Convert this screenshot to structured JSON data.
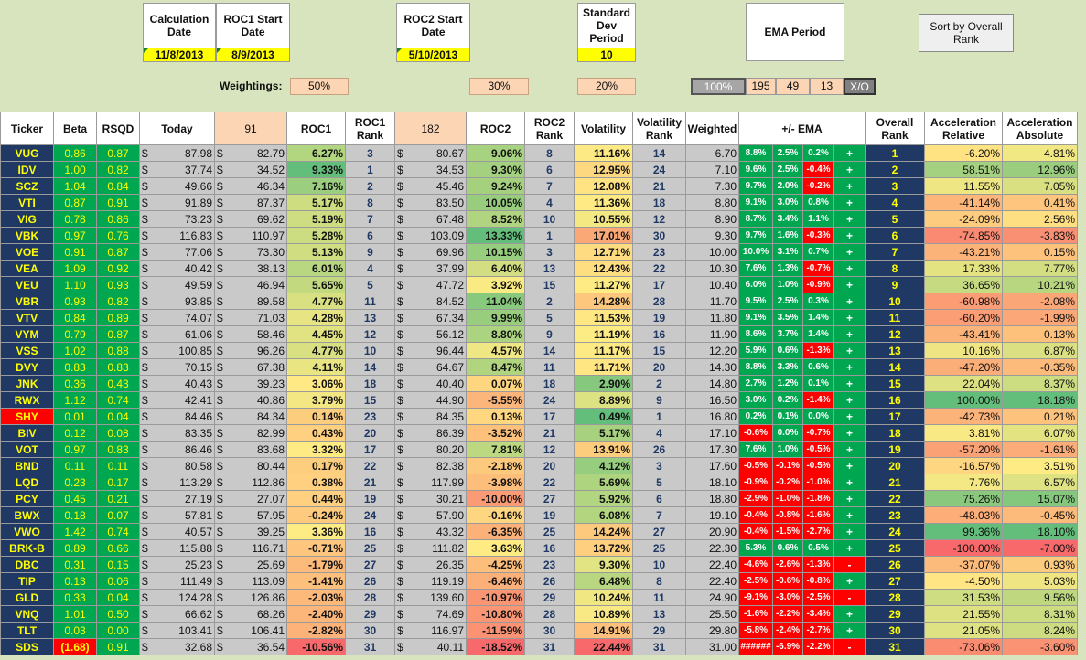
{
  "header": {
    "calc_date_label": "Calculation Date",
    "calc_date": "11/8/2013",
    "roc1_start_label": "ROC1 Start Date",
    "roc1_start": "8/9/2013",
    "roc2_start_label": "ROC2 Start Date",
    "roc2_start": "5/10/2013",
    "std_dev_label": "Standard Dev Period",
    "std_dev": "10",
    "ema_label": "EMA Period",
    "sort_button": "Sort by Overall Rank",
    "weightings_label": "Weightings:",
    "w_roc1": "50%",
    "w_roc2": "30%",
    "w_vol": "20%",
    "ema_pct": "100%",
    "ema_p1": "195",
    "ema_p2": "49",
    "ema_p3": "13",
    "xo": "X/O"
  },
  "columns": {
    "ticker": "Ticker",
    "beta": "Beta",
    "rsqd": "RSQD",
    "today": "Today",
    "p91": "91",
    "roc1": "ROC1",
    "roc1rank": "ROC1 Rank",
    "p182": "182",
    "roc2": "ROC2",
    "roc2rank": "ROC2 Rank",
    "vol": "Volatility",
    "volrank": "Volatility Rank",
    "weighted": "Weighted",
    "ema": "+/- EMA",
    "overall": "Overall Rank",
    "accrel": "Acceleration Relative",
    "accabs": "Acceleration Absolute"
  },
  "colors": {
    "navy": "#1f3864",
    "green": "#00a650",
    "red": "#ff0000",
    "yellow": "#ffff00",
    "peach": "#fcd5b4",
    "gray": "#c9c9c9",
    "bg": "#d7e4bd"
  },
  "rows": [
    [
      "VUG",
      "0.86",
      "0.87",
      "87.98",
      "82.79",
      "6.27%",
      "3",
      "80.67",
      "9.06%",
      "8",
      "11.16%",
      "14",
      "6.70",
      "8.8%",
      "2.5%",
      "0.2%",
      "+",
      "1",
      "-6.20%",
      "4.81%"
    ],
    [
      "IDV",
      "1.00",
      "0.82",
      "37.74",
      "34.52",
      "9.33%",
      "1",
      "34.53",
      "9.30%",
      "6",
      "12.95%",
      "24",
      "7.10",
      "9.6%",
      "2.5%",
      "-0.4%",
      "+",
      "2",
      "58.51%",
      "12.96%"
    ],
    [
      "SCZ",
      "1.04",
      "0.84",
      "49.66",
      "46.34",
      "7.16%",
      "2",
      "45.46",
      "9.24%",
      "7",
      "12.08%",
      "21",
      "7.30",
      "9.7%",
      "2.0%",
      "-0.2%",
      "+",
      "3",
      "11.55%",
      "7.05%"
    ],
    [
      "VTI",
      "0.87",
      "0.91",
      "91.89",
      "87.37",
      "5.17%",
      "8",
      "83.50",
      "10.05%",
      "4",
      "11.36%",
      "18",
      "8.80",
      "9.1%",
      "3.0%",
      "0.8%",
      "+",
      "4",
      "-41.14%",
      "0.41%"
    ],
    [
      "VIG",
      "0.78",
      "0.86",
      "73.23",
      "69.62",
      "5.19%",
      "7",
      "67.48",
      "8.52%",
      "10",
      "10.55%",
      "12",
      "8.90",
      "8.7%",
      "3.4%",
      "1.1%",
      "+",
      "5",
      "-24.09%",
      "2.56%"
    ],
    [
      "VBK",
      "0.97",
      "0.76",
      "116.83",
      "110.97",
      "5.28%",
      "6",
      "103.09",
      "13.33%",
      "1",
      "17.01%",
      "30",
      "9.30",
      "9.7%",
      "1.6%",
      "-0.3%",
      "+",
      "6",
      "-74.85%",
      "-3.83%"
    ],
    [
      "VOE",
      "0.91",
      "0.87",
      "77.06",
      "73.30",
      "5.13%",
      "9",
      "69.96",
      "10.15%",
      "3",
      "12.71%",
      "23",
      "10.00",
      "10.0%",
      "3.1%",
      "0.7%",
      "+",
      "7",
      "-43.21%",
      "0.15%"
    ],
    [
      "VEA",
      "1.09",
      "0.92",
      "40.42",
      "38.13",
      "6.01%",
      "4",
      "37.99",
      "6.40%",
      "13",
      "12.43%",
      "22",
      "10.30",
      "7.6%",
      "1.3%",
      "-0.7%",
      "+",
      "8",
      "17.33%",
      "7.77%"
    ],
    [
      "VEU",
      "1.10",
      "0.93",
      "49.59",
      "46.94",
      "5.65%",
      "5",
      "47.72",
      "3.92%",
      "15",
      "11.27%",
      "17",
      "10.40",
      "6.0%",
      "1.0%",
      "-0.9%",
      "+",
      "9",
      "36.65%",
      "10.21%"
    ],
    [
      "VBR",
      "0.93",
      "0.82",
      "93.85",
      "89.58",
      "4.77%",
      "11",
      "84.52",
      "11.04%",
      "2",
      "14.28%",
      "28",
      "11.70",
      "9.5%",
      "2.5%",
      "0.3%",
      "+",
      "10",
      "-60.98%",
      "-2.08%"
    ],
    [
      "VTV",
      "0.84",
      "0.89",
      "74.07",
      "71.03",
      "4.28%",
      "13",
      "67.34",
      "9.99%",
      "5",
      "11.53%",
      "19",
      "11.80",
      "9.1%",
      "3.5%",
      "1.4%",
      "+",
      "11",
      "-60.20%",
      "-1.99%"
    ],
    [
      "VYM",
      "0.79",
      "0.87",
      "61.06",
      "58.46",
      "4.45%",
      "12",
      "56.12",
      "8.80%",
      "9",
      "11.19%",
      "16",
      "11.90",
      "8.6%",
      "3.7%",
      "1.4%",
      "+",
      "12",
      "-43.41%",
      "0.13%"
    ],
    [
      "VSS",
      "1.02",
      "0.88",
      "100.85",
      "96.26",
      "4.77%",
      "10",
      "96.44",
      "4.57%",
      "14",
      "11.17%",
      "15",
      "12.20",
      "5.9%",
      "0.6%",
      "-1.3%",
      "+",
      "13",
      "10.16%",
      "6.87%"
    ],
    [
      "DVY",
      "0.83",
      "0.83",
      "70.15",
      "67.38",
      "4.11%",
      "14",
      "64.67",
      "8.47%",
      "11",
      "11.71%",
      "20",
      "14.30",
      "8.8%",
      "3.3%",
      "0.6%",
      "+",
      "14",
      "-47.20%",
      "-0.35%"
    ],
    [
      "JNK",
      "0.36",
      "0.43",
      "40.43",
      "39.23",
      "3.06%",
      "18",
      "40.40",
      "0.07%",
      "18",
      "2.90%",
      "2",
      "14.80",
      "2.7%",
      "1.2%",
      "0.1%",
      "+",
      "15",
      "22.04%",
      "8.37%"
    ],
    [
      "RWX",
      "1.12",
      "0.74",
      "42.41",
      "40.86",
      "3.79%",
      "15",
      "44.90",
      "-5.55%",
      "24",
      "8.89%",
      "9",
      "16.50",
      "3.0%",
      "0.2%",
      "-1.4%",
      "+",
      "16",
      "100.00%",
      "18.18%"
    ],
    [
      "SHY",
      "0.01",
      "0.04",
      "84.46",
      "84.34",
      "0.14%",
      "23",
      "84.35",
      "0.13%",
      "17",
      "0.49%",
      "1",
      "16.80",
      "0.2%",
      "0.1%",
      "0.0%",
      "+",
      "17",
      "-42.73%",
      "0.21%"
    ],
    [
      "BIV",
      "0.12",
      "0.08",
      "83.35",
      "82.99",
      "0.43%",
      "20",
      "86.39",
      "-3.52%",
      "21",
      "5.17%",
      "4",
      "17.10",
      "-0.6%",
      "0.0%",
      "-0.7%",
      "+",
      "18",
      "3.81%",
      "6.07%"
    ],
    [
      "VOT",
      "0.97",
      "0.83",
      "86.46",
      "83.68",
      "3.32%",
      "17",
      "80.20",
      "7.81%",
      "12",
      "13.91%",
      "26",
      "17.30",
      "7.6%",
      "1.0%",
      "-0.5%",
      "+",
      "19",
      "-57.20%",
      "-1.61%"
    ],
    [
      "BND",
      "0.11",
      "0.11",
      "80.58",
      "80.44",
      "0.17%",
      "22",
      "82.38",
      "-2.18%",
      "20",
      "4.12%",
      "3",
      "17.60",
      "-0.5%",
      "-0.1%",
      "-0.5%",
      "+",
      "20",
      "-16.57%",
      "3.51%"
    ],
    [
      "LQD",
      "0.23",
      "0.17",
      "113.29",
      "112.86",
      "0.38%",
      "21",
      "117.99",
      "-3.98%",
      "22",
      "5.69%",
      "5",
      "18.10",
      "-0.9%",
      "-0.2%",
      "-1.0%",
      "+",
      "21",
      "7.76%",
      "6.57%"
    ],
    [
      "PCY",
      "0.45",
      "0.21",
      "27.19",
      "27.07",
      "0.44%",
      "19",
      "30.21",
      "-10.00%",
      "27",
      "5.92%",
      "6",
      "18.80",
      "-2.9%",
      "-1.0%",
      "-1.8%",
      "+",
      "22",
      "75.26%",
      "15.07%"
    ],
    [
      "BWX",
      "0.18",
      "0.07",
      "57.81",
      "57.95",
      "-0.24%",
      "24",
      "57.90",
      "-0.16%",
      "19",
      "6.08%",
      "7",
      "19.10",
      "-0.4%",
      "-0.8%",
      "-1.6%",
      "+",
      "23",
      "-48.03%",
      "-0.45%"
    ],
    [
      "VWO",
      "1.42",
      "0.74",
      "40.57",
      "39.25",
      "3.36%",
      "16",
      "43.32",
      "-6.35%",
      "25",
      "14.24%",
      "27",
      "20.90",
      "-0.4%",
      "-1.5%",
      "-2.7%",
      "+",
      "24",
      "99.36%",
      "18.10%"
    ],
    [
      "BRK-B",
      "0.89",
      "0.66",
      "115.88",
      "116.71",
      "-0.71%",
      "25",
      "111.82",
      "3.63%",
      "16",
      "13.72%",
      "25",
      "22.30",
      "5.3%",
      "0.6%",
      "0.5%",
      "+",
      "25",
      "-100.00%",
      "-7.00%"
    ],
    [
      "DBC",
      "0.31",
      "0.15",
      "25.23",
      "25.69",
      "-1.79%",
      "27",
      "26.35",
      "-4.25%",
      "23",
      "9.30%",
      "10",
      "22.40",
      "-4.6%",
      "-2.6%",
      "-1.3%",
      "-",
      "26",
      "-37.07%",
      "0.93%"
    ],
    [
      "TIP",
      "0.13",
      "0.06",
      "111.49",
      "113.09",
      "-1.41%",
      "26",
      "119.19",
      "-6.46%",
      "26",
      "6.48%",
      "8",
      "22.40",
      "-2.5%",
      "-0.6%",
      "-0.8%",
      "+",
      "27",
      "-4.50%",
      "5.03%"
    ],
    [
      "GLD",
      "0.33",
      "0.04",
      "124.28",
      "126.86",
      "-2.03%",
      "28",
      "139.60",
      "-10.97%",
      "29",
      "10.24%",
      "11",
      "24.90",
      "-9.1%",
      "-3.0%",
      "-2.5%",
      "-",
      "28",
      "31.53%",
      "9.56%"
    ],
    [
      "VNQ",
      "1.01",
      "0.50",
      "66.62",
      "68.26",
      "-2.40%",
      "29",
      "74.69",
      "-10.80%",
      "28",
      "10.89%",
      "13",
      "25.50",
      "-1.6%",
      "-2.2%",
      "-3.4%",
      "+",
      "29",
      "21.55%",
      "8.31%"
    ],
    [
      "TLT",
      "0.03",
      "0.00",
      "103.41",
      "106.41",
      "-2.82%",
      "30",
      "116.97",
      "-11.59%",
      "30",
      "14.91%",
      "29",
      "29.80",
      "-5.8%",
      "-2.4%",
      "-2.7%",
      "+",
      "30",
      "21.05%",
      "8.24%"
    ],
    [
      "SDS",
      "(1.68)",
      "0.91",
      "32.68",
      "36.54",
      "-10.56%",
      "31",
      "40.11",
      "-18.52%",
      "31",
      "22.44%",
      "31",
      "31.00",
      "######",
      "-6.9%",
      "-2.2%",
      "-",
      "31",
      "-73.06%",
      "-3.60%"
    ]
  ]
}
